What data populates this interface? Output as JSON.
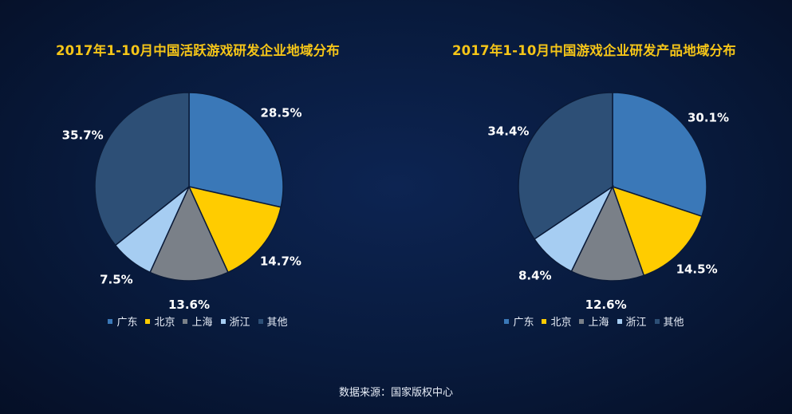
{
  "categories": [
    "广东",
    "北京",
    "上海",
    "浙江",
    "其他"
  ],
  "colors": [
    "#3a78b8",
    "#ffcc00",
    "#7a8088",
    "#a6cdf2",
    "#2d4f76"
  ],
  "chart_data": [
    {
      "type": "pie",
      "title": "2017年1-10月中国活跃游戏研发企业地域分布",
      "categories": [
        "广东",
        "北京",
        "上海",
        "浙江",
        "其他"
      ],
      "values": [
        28.5,
        14.7,
        13.6,
        7.5,
        35.7
      ],
      "labels": [
        "28.5%",
        "14.7%",
        "13.6%",
        "7.5%",
        "35.7%"
      ],
      "legend": "bottom"
    },
    {
      "type": "pie",
      "title": "2017年1-10月中国游戏企业研发产品地域分布",
      "categories": [
        "广东",
        "北京",
        "上海",
        "浙江",
        "其他"
      ],
      "values": [
        30.1,
        14.5,
        12.6,
        8.4,
        34.4
      ],
      "labels": [
        "30.1%",
        "14.5%",
        "12.6%",
        "8.4%",
        "34.4%"
      ],
      "legend": "bottom"
    }
  ],
  "source": "数据来源：国家版权中心"
}
